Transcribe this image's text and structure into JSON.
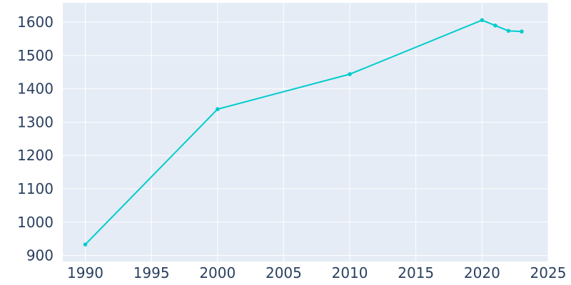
{
  "chart_data": {
    "type": "line",
    "title": "",
    "xlabel": "",
    "ylabel": "",
    "x": [
      1990,
      2000,
      2010,
      2020,
      2021,
      2022,
      2023
    ],
    "series": [
      {
        "values": [
          933,
          1339,
          1444,
          1606,
          1590,
          1574,
          1572
        ]
      }
    ],
    "xlim": [
      1988.3,
      2025
    ],
    "ylim": [
      882,
      1658
    ],
    "xticks": [
      1990,
      1995,
      2000,
      2005,
      2010,
      2015,
      2020,
      2025
    ],
    "yticks": [
      900,
      1000,
      1100,
      1200,
      1300,
      1400,
      1500,
      1600
    ],
    "xtick_labels": [
      "1990",
      "1995",
      "2000",
      "2005",
      "2010",
      "2015",
      "2020",
      "2025"
    ],
    "ytick_labels": [
      "900",
      "1000",
      "1100",
      "1200",
      "1300",
      "1400",
      "1500",
      "1600"
    ],
    "grid": true,
    "legend": "none",
    "colors": {
      "line": "#00CCCC",
      "plot_background": "#E5ECF6",
      "grid": "#FFFFFF",
      "tick_text": "#2A3F5F",
      "page_background": "#FFFFFF"
    }
  }
}
